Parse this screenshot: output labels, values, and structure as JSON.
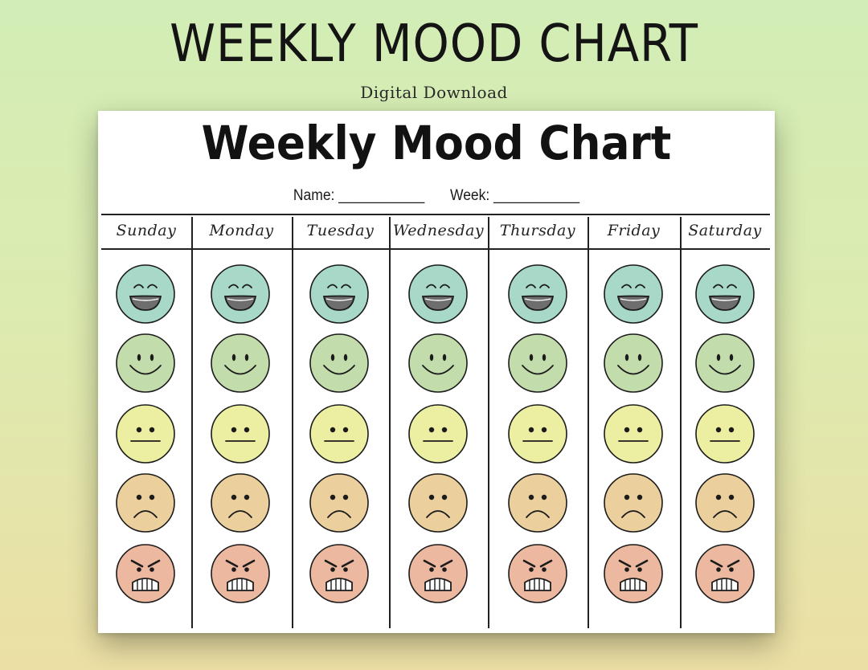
{
  "banner": {
    "title": "WEEKLY MOOD CHART",
    "subtitle": "Digital Download"
  },
  "sheet": {
    "title": "Weekly Mood Chart",
    "name_label": "Name:",
    "name_blank": "___________",
    "week_label": "Week:",
    "week_blank": "___________"
  },
  "days": [
    "Sunday",
    "Monday",
    "Tuesday",
    "Wednesday",
    "Thursday",
    "Friday",
    "Saturday"
  ],
  "moods": [
    {
      "name": "very-happy",
      "color": "#a8d8c8"
    },
    {
      "name": "happy",
      "color": "#c2dcac"
    },
    {
      "name": "neutral",
      "color": "#eceea2"
    },
    {
      "name": "sad",
      "color": "#ebcf9c"
    },
    {
      "name": "angry",
      "color": "#ecb9a0"
    }
  ]
}
